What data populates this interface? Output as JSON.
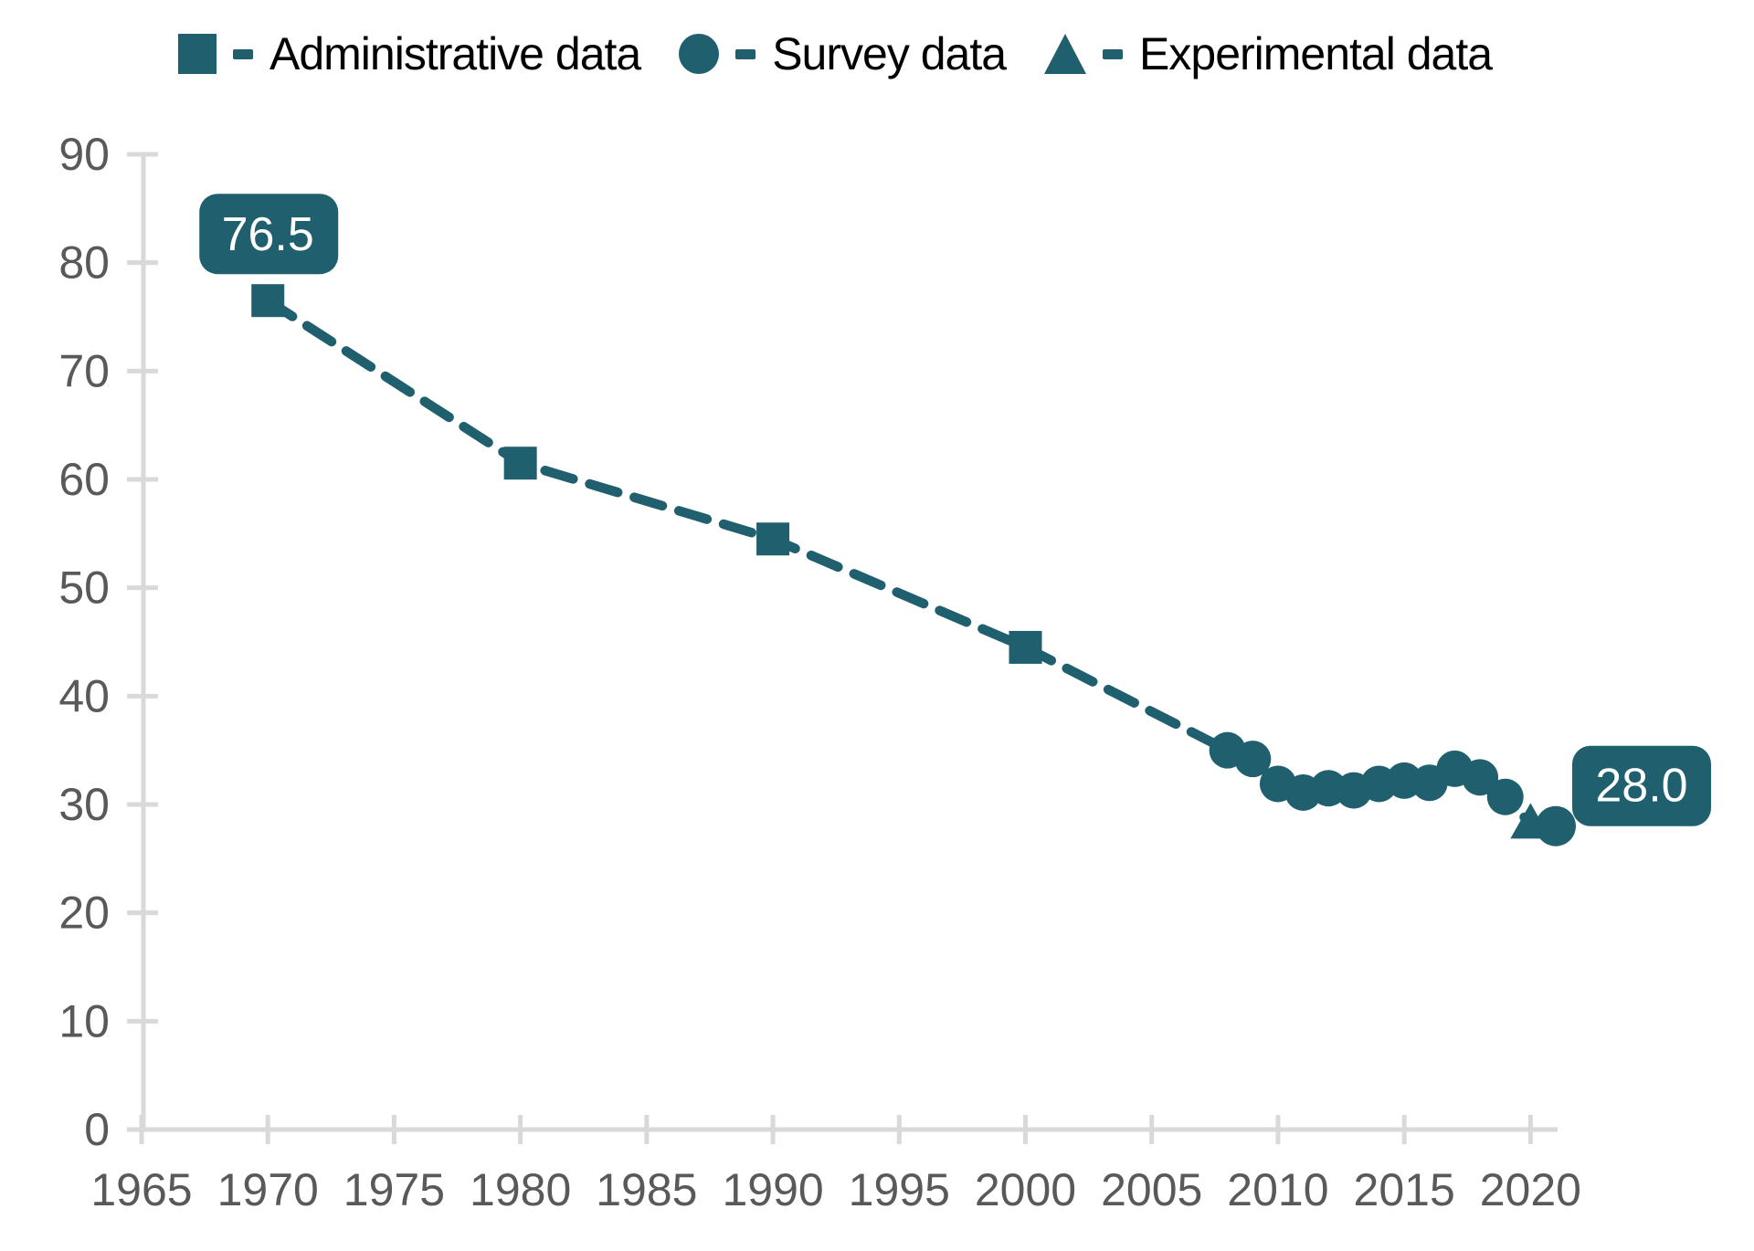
{
  "colors": {
    "series": "#20606e",
    "axis": "#d9d9d9",
    "tick_label": "#595959",
    "legend_text": "#000000",
    "annotation_text": "#ffffff"
  },
  "legend": [
    {
      "label": "Administrative data",
      "marker": "square"
    },
    {
      "label": "Survey data",
      "marker": "circle"
    },
    {
      "label": "Experimental data",
      "marker": "triangle"
    }
  ],
  "chart_data": {
    "type": "line",
    "title": "",
    "xlabel": "",
    "ylabel": "",
    "xlim": [
      1965,
      2021
    ],
    "ylim": [
      0,
      90
    ],
    "x_ticks": [
      1965,
      1970,
      1975,
      1980,
      1985,
      1990,
      1995,
      2000,
      2005,
      2010,
      2015,
      2020
    ],
    "y_ticks": [
      0,
      10,
      20,
      30,
      40,
      50,
      60,
      70,
      80,
      90
    ],
    "grid": false,
    "legend_position": "top",
    "line_style": "dashed",
    "line_connects_all_series": true,
    "series": [
      {
        "name": "Administrative data",
        "marker": "square",
        "points": [
          [
            1970,
            76.5
          ],
          [
            1980,
            61.5
          ],
          [
            1990,
            54.5
          ],
          [
            2000,
            44.5
          ]
        ]
      },
      {
        "name": "Survey data",
        "marker": "circle",
        "points": [
          [
            2008,
            35.0
          ],
          [
            2009,
            34.2
          ],
          [
            2010,
            31.9
          ],
          [
            2011,
            31.1
          ],
          [
            2012,
            31.5
          ],
          [
            2013,
            31.3
          ],
          [
            2014,
            31.9
          ],
          [
            2015,
            32.2
          ],
          [
            2016,
            32.0
          ],
          [
            2017,
            33.3
          ],
          [
            2018,
            32.5
          ],
          [
            2019,
            30.7
          ],
          [
            2021,
            28.0
          ]
        ]
      },
      {
        "name": "Experimental data",
        "marker": "triangle",
        "points": [
          [
            2020,
            28.2
          ]
        ]
      }
    ],
    "annotations": [
      {
        "text": "76.5",
        "year": 1970,
        "value": 76.5,
        "position": "above"
      },
      {
        "text": "28.0",
        "year": 2021,
        "value": 28.0,
        "position": "right"
      }
    ]
  }
}
